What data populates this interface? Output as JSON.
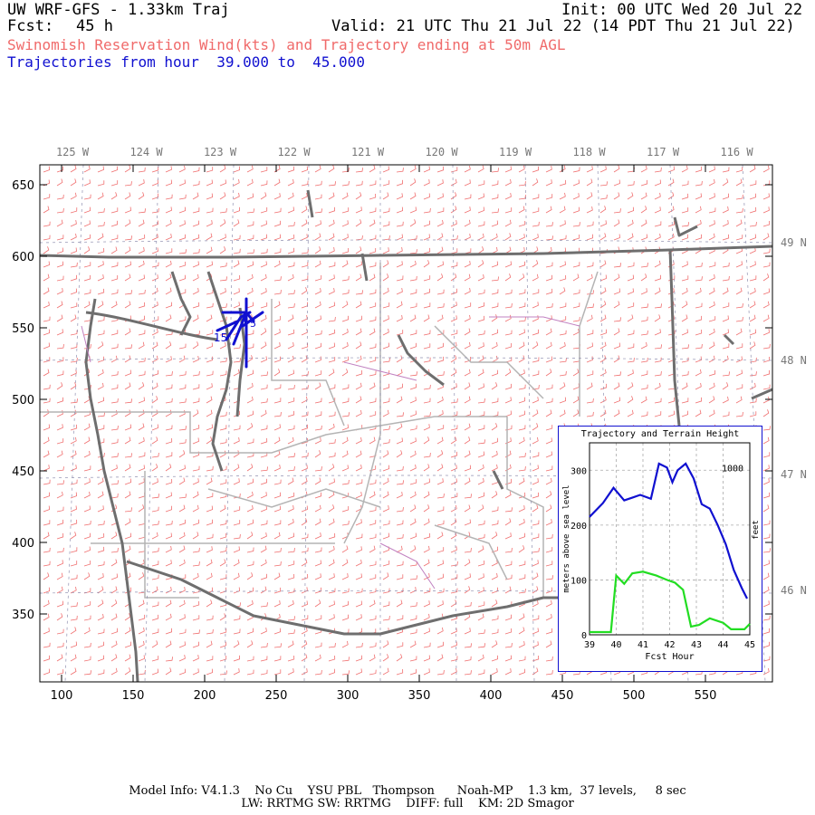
{
  "header": {
    "model_title": "UW WRF-GFS - 1.33km Traj",
    "init": "Init: 00 UTC Wed 20 Jul 22",
    "fcst_label": "Fcst:",
    "fcst_value": "45 h",
    "valid": "Valid: 21 UTC Thu 21 Jul 22 (14 PDT Thu 21 Jul 22)",
    "subtitle": "Swinomish Reservation Wind(kts) and Trajectory ending at 50m AGL",
    "traj_range": "Trajectories from hour  39.000 to  45.000"
  },
  "map": {
    "lon_labels": [
      "125 W",
      "124 W",
      "123 W",
      "122 W",
      "121 W",
      "120 W",
      "119 W",
      "118 W",
      "117 W",
      "116 W"
    ],
    "lat_labels": [
      "49 N",
      "48 N",
      "47 N",
      "46 N"
    ],
    "x_axis_ticks": [
      "100",
      "150",
      "200",
      "250",
      "300",
      "350",
      "400",
      "450",
      "500",
      "550"
    ],
    "y_axis_ticks": [
      "650",
      "600",
      "550",
      "500",
      "450",
      "400",
      "350"
    ],
    "trajectory_labels": [
      "15",
      "5"
    ],
    "colors": {
      "wind_barbs": "#f07070",
      "coast": "#6e6e6e",
      "borders": "#b0b0b0",
      "trajectory": "#1010d0",
      "rivers": "#c080c0"
    }
  },
  "inset": {
    "title": "Trajectory and Terrain Height",
    "ylabel_left": "meters above sea level",
    "ylabel_right": "feet",
    "xlabel": "Fcst Hour",
    "y_ticks_left": [
      "0",
      "100",
      "200",
      "300"
    ],
    "y_tick_right": "1000",
    "x_ticks": [
      "39",
      "40",
      "41",
      "42",
      "43",
      "44",
      "45"
    ]
  },
  "chart_data": {
    "type": "line",
    "title": "Trajectory and Terrain Height",
    "xlabel": "Fcst Hour",
    "ylabel": "meters above sea level",
    "xlim": [
      39,
      45
    ],
    "ylim": [
      0,
      350
    ],
    "series": [
      {
        "color": "#1010d0",
        "x": [
          39.0,
          39.5,
          39.9,
          40.3,
          40.6,
          40.9,
          41.3,
          41.6,
          41.9,
          42.1,
          42.3,
          42.6,
          42.9,
          43.2,
          43.5,
          43.8,
          44.1,
          44.4,
          44.7,
          44.9
        ],
        "values": [
          215,
          240,
          268,
          245,
          250,
          255,
          248,
          312,
          305,
          278,
          300,
          312,
          285,
          238,
          230,
          200,
          165,
          118,
          85,
          66
        ]
      },
      {
        "color": "#22dd22",
        "x": [
          39.0,
          39.5,
          39.8,
          40.0,
          40.3,
          40.6,
          41.0,
          41.5,
          41.9,
          42.2,
          42.5,
          42.8,
          43.1,
          43.5,
          44.0,
          44.3,
          44.5,
          44.8,
          45.0
        ],
        "values": [
          5,
          5,
          5,
          108,
          93,
          112,
          115,
          108,
          100,
          95,
          82,
          15,
          18,
          30,
          22,
          10,
          10,
          10,
          20
        ]
      }
    ]
  },
  "footer": {
    "line1": "Model Info: V4.1.3    No Cu    YSU PBL   Thompson      Noah-MP    1.3 km,  37 levels,     8 sec",
    "line2": "LW: RRTMG SW: RRTMG    DIFF: full    KM: 2D Smagor"
  }
}
